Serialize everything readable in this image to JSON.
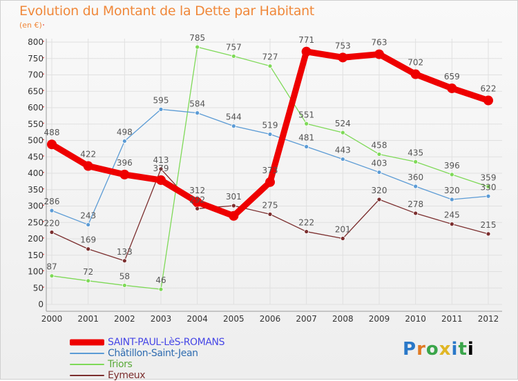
{
  "header": {
    "title": "Evolution du Montant de la Dette par Habitant",
    "subtitle": "(en €)"
  },
  "logo": {
    "text": "Proxiti"
  },
  "colors": {
    "title": "#f0883a",
    "grid": "#e0e0e0",
    "axis": "#9a9a9a",
    "tick_text": "#333333",
    "value_text": "#555555"
  },
  "chart_data": {
    "type": "line",
    "title": "Evolution du Montant de la Dette par Habitant",
    "ylabel": "(en €)",
    "xlabel": "",
    "x": [
      "2000",
      "2001",
      "2002",
      "2003",
      "2004",
      "2005",
      "2006",
      "2007",
      "2008",
      "2009",
      "2010",
      "2011",
      "2012"
    ],
    "ylim": [
      0,
      800
    ],
    "yticks": [
      0,
      50,
      100,
      150,
      200,
      250,
      300,
      350,
      400,
      450,
      500,
      550,
      600,
      650,
      700,
      750,
      800
    ],
    "grid": true,
    "legend": "bottom-left",
    "series": [
      {
        "name": "SAINT-PAUL-LèS-ROMANS",
        "color": "#ee0000",
        "legend_text_color": "#4646e6",
        "width": 9,
        "values": [
          488,
          422,
          396,
          379,
          312,
          270,
          373,
          771,
          753,
          763,
          702,
          659,
          622
        ],
        "labels": [
          "488",
          "422",
          "396",
          "379",
          "312",
          "",
          "373",
          "771",
          "753",
          "763",
          "702",
          "659",
          "622"
        ]
      },
      {
        "name": "Châtillon-Saint-Jean",
        "color": "#5b9bd5",
        "legend_text_color": "#2f6cb0",
        "width": 1.3,
        "values": [
          286,
          243,
          498,
          595,
          584,
          544,
          519,
          481,
          443,
          403,
          360,
          320,
          330
        ],
        "labels": [
          "286",
          "243",
          "498",
          "595",
          "584",
          "544",
          "519",
          "481",
          "443",
          "403",
          "360",
          "320",
          "330"
        ]
      },
      {
        "name": "Triors",
        "color": "#7ed957",
        "legend_text_color": "#5aaa3a",
        "width": 1.3,
        "values": [
          87,
          72,
          58,
          46,
          785,
          757,
          727,
          551,
          524,
          458,
          435,
          396,
          359
        ],
        "labels": [
          "87",
          "72",
          "58",
          "46",
          "785",
          "757",
          "727",
          "551",
          "524",
          "458",
          "435",
          "396",
          "359"
        ]
      },
      {
        "name": "Eymeux",
        "color": "#7b2e2e",
        "legend_text_color": "#7b2e2e",
        "width": 1.3,
        "values": [
          220,
          169,
          133,
          413,
          292,
          301,
          275,
          222,
          201,
          320,
          278,
          245,
          215
        ],
        "labels": [
          "220",
          "169",
          "133",
          "413",
          "292",
          "301",
          "275",
          "222",
          "201",
          "320",
          "278",
          "245",
          "215"
        ]
      }
    ]
  }
}
